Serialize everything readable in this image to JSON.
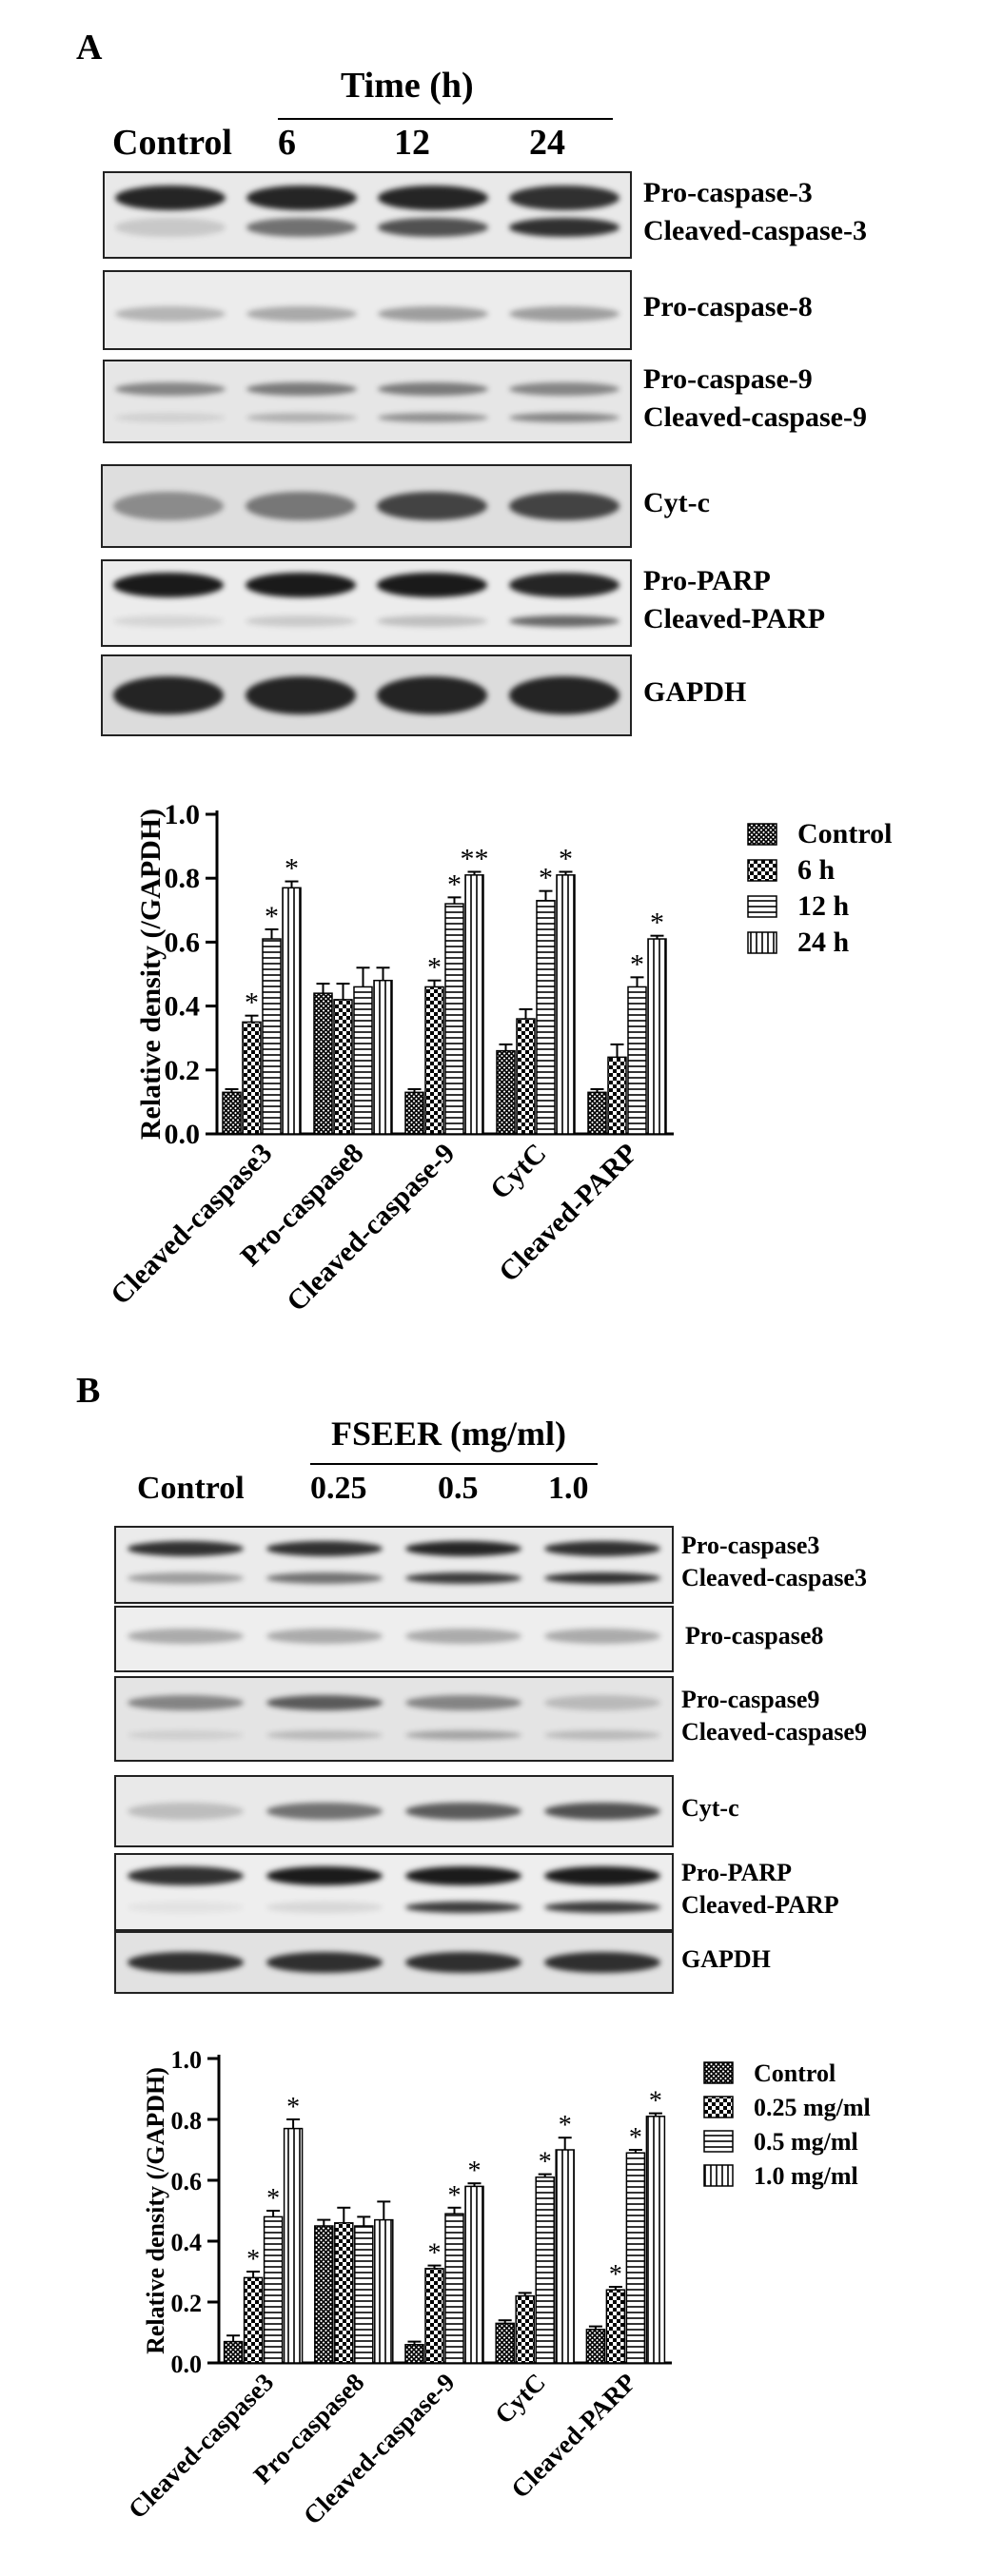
{
  "panel_a": {
    "letter": "A",
    "time_header": "Time (h)",
    "lanes": [
      "Control",
      "6",
      "12",
      "24"
    ],
    "blots": [
      {
        "labels": [
          "Pro-caspase-3",
          "Cleaved-caspase-3"
        ]
      },
      {
        "labels": [
          "Pro-caspase-8"
        ]
      },
      {
        "labels": [
          "Pro-caspase-9",
          "Cleaved-caspase-9"
        ]
      },
      {
        "labels": [
          "Cyt-c"
        ]
      },
      {
        "labels": [
          "Pro-PARP",
          "Cleaved-PARP"
        ]
      },
      {
        "labels": [
          "GAPDH"
        ]
      }
    ]
  },
  "panel_b": {
    "letter": "B",
    "dose_header": "FSEER (mg/ml)",
    "lanes": [
      "Control",
      "0.25",
      "0.5",
      "1.0"
    ],
    "blots": [
      {
        "labels": [
          "Pro-caspase3",
          "Cleaved-caspase3"
        ]
      },
      {
        "labels": [
          "Pro-caspase8"
        ]
      },
      {
        "labels": [
          "Pro-caspase9",
          "Cleaved-caspase9"
        ]
      },
      {
        "labels": [
          "Cyt-c"
        ]
      },
      {
        "labels": [
          "Pro-PARP",
          "Cleaved-PARP"
        ]
      },
      {
        "labels": [
          "GAPDH"
        ]
      }
    ]
  },
  "chart_data": [
    {
      "type": "bar",
      "title": "",
      "xlabel": "",
      "ylabel": "Relative density (/GAPDH)",
      "ylim": [
        0,
        1.0
      ],
      "yticks": [
        "0.0",
        "0.2",
        "0.4",
        "0.6",
        "0.8",
        "1.0"
      ],
      "categories": [
        "Cleaved-caspase3",
        "Pro-caspase8",
        "Cleaved-caspase-9",
        "CytC",
        "Cleaved-PARP"
      ],
      "legend_position": "top-right",
      "series": [
        {
          "name": "Control",
          "values": [
            0.13,
            0.44,
            0.13,
            0.26,
            0.13
          ],
          "errors": [
            0.01,
            0.03,
            0.01,
            0.02,
            0.01
          ],
          "sig": [
            "",
            "",
            "",
            "",
            ""
          ]
        },
        {
          "name": "6 h",
          "values": [
            0.35,
            0.42,
            0.46,
            0.36,
            0.24
          ],
          "errors": [
            0.02,
            0.05,
            0.02,
            0.03,
            0.04
          ],
          "sig": [
            "*",
            "",
            "*",
            "",
            ""
          ]
        },
        {
          "name": "12 h",
          "values": [
            0.61,
            0.46,
            0.72,
            0.73,
            0.46
          ],
          "errors": [
            0.03,
            0.06,
            0.02,
            0.03,
            0.03
          ],
          "sig": [
            "*",
            "",
            "*",
            "*",
            "*"
          ]
        },
        {
          "name": "24 h",
          "values": [
            0.77,
            0.48,
            0.81,
            0.81,
            0.61
          ],
          "errors": [
            0.02,
            0.04,
            0.01,
            0.01,
            0.01
          ],
          "sig": [
            "*",
            "",
            "**",
            "*",
            "*"
          ]
        }
      ]
    },
    {
      "type": "bar",
      "title": "",
      "xlabel": "",
      "ylabel": "Relative density (/GAPDH)",
      "ylim": [
        0,
        1.0
      ],
      "yticks": [
        "0.0",
        "0.2",
        "0.4",
        "0.6",
        "0.8",
        "1.0"
      ],
      "categories": [
        "Cleaved-caspase3",
        "Pro-caspase8",
        "Cleaved-caspase-9",
        "CytC",
        "Cleaved-PARP"
      ],
      "legend_position": "top-right",
      "series": [
        {
          "name": "Control",
          "values": [
            0.07,
            0.45,
            0.06,
            0.13,
            0.11
          ],
          "errors": [
            0.02,
            0.02,
            0.01,
            0.01,
            0.01
          ],
          "sig": [
            "",
            "",
            "",
            "",
            ""
          ]
        },
        {
          "name": "0.25 mg/ml",
          "values": [
            0.28,
            0.46,
            0.31,
            0.22,
            0.24
          ],
          "errors": [
            0.02,
            0.05,
            0.01,
            0.01,
            0.01
          ],
          "sig": [
            "*",
            "",
            "*",
            "",
            "*"
          ]
        },
        {
          "name": "0.5 mg/ml",
          "values": [
            0.48,
            0.45,
            0.49,
            0.61,
            0.69
          ],
          "errors": [
            0.02,
            0.03,
            0.02,
            0.01,
            0.01
          ],
          "sig": [
            "*",
            "",
            "*",
            "*",
            "*"
          ]
        },
        {
          "name": "1.0 mg/ml",
          "values": [
            0.77,
            0.47,
            0.58,
            0.7,
            0.81
          ],
          "errors": [
            0.03,
            0.06,
            0.01,
            0.04,
            0.01
          ],
          "sig": [
            "*",
            "",
            "*",
            "*",
            "*"
          ]
        }
      ]
    }
  ]
}
